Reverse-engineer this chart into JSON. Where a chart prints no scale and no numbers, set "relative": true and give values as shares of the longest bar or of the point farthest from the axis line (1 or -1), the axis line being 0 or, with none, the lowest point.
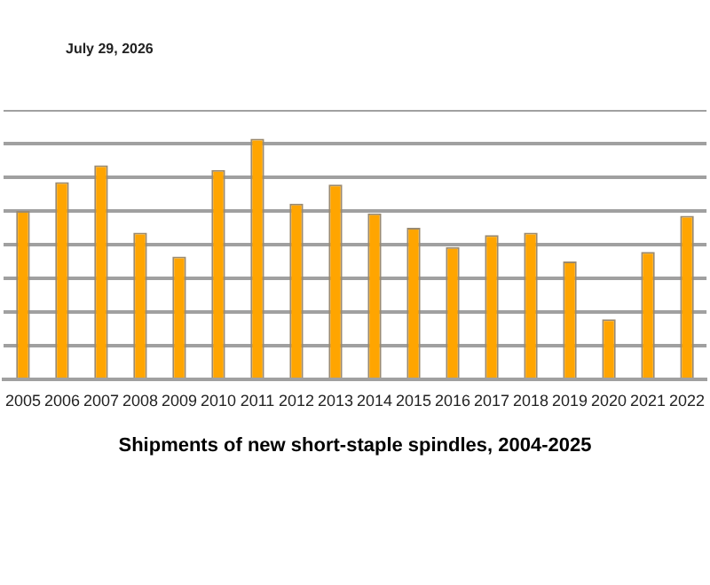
{
  "chart_data": {
    "type": "bar",
    "title": "Shipments of new short-staple spindles, 2004-2025",
    "annotations": [
      "July 29, 2026"
    ],
    "categories": [
      "2005",
      "2006",
      "2007",
      "2008",
      "2009",
      "2010",
      "2011",
      "2012",
      "2013",
      "2014",
      "2015",
      "2016",
      "2017",
      "2018",
      "2019",
      "2020",
      "2021",
      "2022"
    ],
    "values": [
      0.7,
      0.82,
      0.89,
      0.61,
      0.51,
      0.87,
      1,
      0.73,
      0.81,
      0.69,
      0.63,
      0.55,
      0.6,
      0.61,
      0.49,
      0.25,
      0.53,
      0.68
    ],
    "color": "#ffa500",
    "relative": true,
    "grid": "y",
    "legend": false
  }
}
